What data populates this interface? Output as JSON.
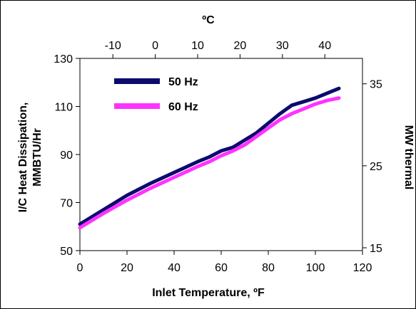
{
  "chart_data": {
    "type": "line",
    "title": "",
    "xlabel": "Inlet Temperature, ºF",
    "ylabel_lines": [
      "I/C Heat Dissipation,",
      "MMBTU/Hr"
    ],
    "y2label": "MW thermal",
    "x2label": "ºC",
    "xlim": [
      0,
      120
    ],
    "ylim": [
      50,
      130
    ],
    "x_ticks": [
      "0",
      "20",
      "40",
      "60",
      "80",
      "100",
      "120"
    ],
    "y_ticks": [
      "50",
      "70",
      "90",
      "110",
      "130"
    ],
    "x2_ticks": [
      "-10",
      "0",
      "10",
      "20",
      "30",
      "40"
    ],
    "x2_tick_values_c": [
      -10,
      0,
      10,
      20,
      30,
      40
    ],
    "y2_ticks": [
      "15",
      "25",
      "35"
    ],
    "y2_tick_values_mw": [
      15,
      25,
      35
    ],
    "grid": false,
    "legend_position": "top-left",
    "series": [
      {
        "name": "50 Hz",
        "color": "#0b0b6e",
        "x": [
          0,
          10,
          20,
          30,
          40,
          50,
          55,
          60,
          65,
          70,
          75,
          80,
          85,
          90,
          95,
          100,
          105,
          110
        ],
        "y": [
          61,
          67,
          73,
          78,
          82.5,
          87,
          89,
          91.5,
          93,
          96,
          99,
          103,
          107,
          110.5,
          112,
          113.5,
          115.5,
          117.5
        ]
      },
      {
        "name": "60 Hz",
        "color": "#ff33ff",
        "x": [
          0,
          10,
          20,
          30,
          40,
          50,
          55,
          60,
          65,
          70,
          75,
          80,
          85,
          90,
          95,
          100,
          105,
          110
        ],
        "y": [
          59.5,
          65.5,
          71,
          76,
          80.5,
          85,
          87,
          89.5,
          91.5,
          94,
          97.5,
          101,
          104.5,
          107,
          109,
          111,
          112.5,
          113.5
        ]
      }
    ]
  }
}
